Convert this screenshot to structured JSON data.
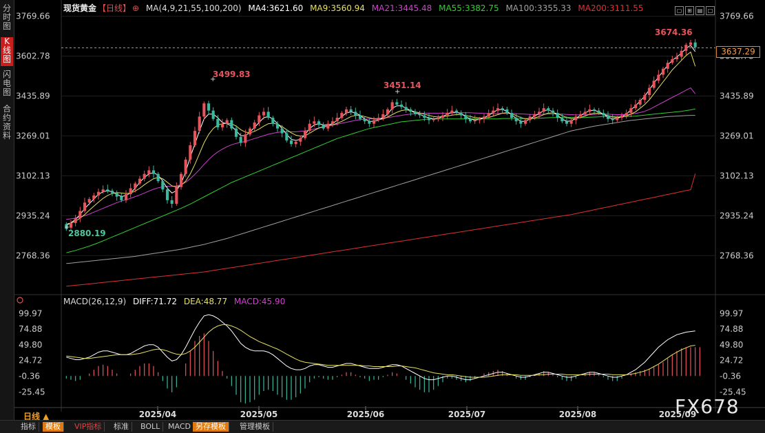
{
  "sidebar": {
    "tabs": [
      {
        "label": "分时图",
        "active": false
      },
      {
        "label": "K线图",
        "active": true
      },
      {
        "label": "闪电图",
        "active": false
      },
      {
        "label": "合约资料",
        "active": false
      }
    ]
  },
  "header": {
    "title": "现货黄金",
    "period_tag": "【日线】",
    "ma_params": "MA(4,9,21,55,100,200)",
    "ma4": "MA4:3621.60",
    "ma9": "MA9:3560.94",
    "ma21": "MA21:3445.48",
    "ma55": "MA55:3382.75",
    "ma100": "MA100:3355.33",
    "ma200": "MA200:3111.55"
  },
  "macd_header": {
    "params": "MACD(26,12,9)",
    "diff": "DIFF:71.72",
    "dea": "DEA:48.77",
    "macd": "MACD:45.90"
  },
  "current_price": "3637.29",
  "bottom_bar": {
    "period": "日线 ▲",
    "tabs": [
      "指标",
      "模板",
      "VIP指标",
      "标准",
      "BOLL",
      "MACD",
      "另存模板",
      "管理模板"
    ]
  },
  "watermark": "FX678",
  "colors": {
    "up": "#e8545c",
    "down": "#3ab8a0",
    "ma4": "#ffffff",
    "ma9": "#e8e060",
    "ma21": "#d040d0",
    "ma55": "#30d030",
    "ma100": "#a0a0a0",
    "ma200": "#e03030",
    "diff": "#ffffff",
    "dea": "#e8e060"
  },
  "chart_data": {
    "type": "candlestick",
    "price_axis": {
      "ticks": [
        "3769.66",
        "3602.78",
        "3435.89",
        "3269.01",
        "3102.13",
        "2935.24",
        "2768.36"
      ],
      "range": [
        2680,
        3800
      ]
    },
    "macd_axis": {
      "ticks": [
        "99.97",
        "74.88",
        "49.80",
        "24.72",
        "-0.36",
        "-25.45"
      ],
      "range": [
        -35,
        110
      ]
    },
    "x_labels": [
      "2025/04",
      "2025/05",
      "2025/06",
      "2025/07",
      "2025/08",
      "2025/09"
    ],
    "annotations": {
      "high_1": "3499.83",
      "low_1": "2880.19",
      "high_2": "3451.14",
      "high_3": "3674.36"
    },
    "closes": [
      2880,
      2905,
      2925,
      2955,
      2990,
      3005,
      3020,
      3035,
      3045,
      3040,
      3030,
      3015,
      3000,
      3025,
      3050,
      3070,
      3090,
      3110,
      3125,
      3110,
      3080,
      3045,
      3000,
      2985,
      3055,
      3110,
      3170,
      3230,
      3290,
      3350,
      3405,
      3375,
      3340,
      3305,
      3320,
      3335,
      3300,
      3265,
      3240,
      3275,
      3300,
      3325,
      3355,
      3370,
      3345,
      3320,
      3300,
      3280,
      3250,
      3235,
      3245,
      3260,
      3290,
      3320,
      3330,
      3315,
      3300,
      3320,
      3330,
      3345,
      3365,
      3380,
      3370,
      3355,
      3340,
      3330,
      3320,
      3335,
      3345,
      3360,
      3380,
      3410,
      3400,
      3390,
      3380,
      3370,
      3360,
      3355,
      3345,
      3335,
      3340,
      3345,
      3355,
      3365,
      3375,
      3365,
      3355,
      3340,
      3330,
      3335,
      3340,
      3350,
      3365,
      3375,
      3385,
      3380,
      3365,
      3345,
      3330,
      3320,
      3335,
      3350,
      3360,
      3370,
      3385,
      3375,
      3365,
      3345,
      3330,
      3320,
      3335,
      3350,
      3360,
      3370,
      3380,
      3375,
      3365,
      3355,
      3340,
      3335,
      3345,
      3355,
      3365,
      3385,
      3400,
      3420,
      3440,
      3470,
      3500,
      3525,
      3550,
      3575,
      3590,
      3600,
      3625,
      3650,
      3660,
      3640
    ],
    "opens": [
      2900,
      2885,
      2905,
      2925,
      2955,
      2990,
      3005,
      3020,
      3035,
      3045,
      3040,
      3030,
      3015,
      3000,
      3025,
      3050,
      3070,
      3090,
      3110,
      3125,
      3110,
      3080,
      3045,
      3000,
      2985,
      3055,
      3110,
      3170,
      3230,
      3290,
      3350,
      3405,
      3375,
      3340,
      3305,
      3320,
      3335,
      3300,
      3265,
      3240,
      3275,
      3300,
      3325,
      3355,
      3370,
      3345,
      3320,
      3300,
      3280,
      3250,
      3235,
      3245,
      3260,
      3290,
      3320,
      3330,
      3315,
      3300,
      3320,
      3330,
      3345,
      3365,
      3380,
      3370,
      3355,
      3340,
      3330,
      3320,
      3335,
      3345,
      3360,
      3380,
      3410,
      3400,
      3390,
      3380,
      3370,
      3360,
      3355,
      3345,
      3335,
      3340,
      3345,
      3355,
      3365,
      3375,
      3365,
      3355,
      3340,
      3330,
      3335,
      3340,
      3350,
      3365,
      3375,
      3385,
      3380,
      3365,
      3345,
      3330,
      3320,
      3335,
      3350,
      3360,
      3370,
      3385,
      3375,
      3365,
      3345,
      3330,
      3320,
      3335,
      3350,
      3360,
      3370,
      3380,
      3375,
      3365,
      3355,
      3340,
      3335,
      3345,
      3355,
      3365,
      3385,
      3400,
      3420,
      3440,
      3470,
      3500,
      3525,
      3550,
      3575,
      3590,
      3600,
      3625,
      3650,
      3660
    ],
    "ma4": [
      2895,
      2905,
      2920,
      2940,
      2965,
      2985,
      3005,
      3025,
      3035,
      3040,
      3035,
      3025,
      3015,
      3020,
      3030,
      3050,
      3075,
      3095,
      3110,
      3115,
      3105,
      3080,
      3050,
      3030,
      3040,
      3070,
      3120,
      3180,
      3235,
      3290,
      3340,
      3360,
      3360,
      3345,
      3325,
      3320,
      3310,
      3290,
      3270,
      3270,
      3285,
      3305,
      3325,
      3345,
      3350,
      3340,
      3320,
      3300,
      3275,
      3255,
      3250,
      3255,
      3275,
      3300,
      3315,
      3320,
      3315,
      3315,
      3320,
      3335,
      3350,
      3365,
      3370,
      3365,
      3355,
      3340,
      3330,
      3330,
      3335,
      3345,
      3360,
      3385,
      3395,
      3395,
      3385,
      3375,
      3365,
      3360,
      3350,
      3345,
      3340,
      3342,
      3350,
      3360,
      3368,
      3368,
      3362,
      3350,
      3340,
      3336,
      3338,
      3345,
      3355,
      3368,
      3378,
      3380,
      3372,
      3358,
      3342,
      3330,
      3330,
      3340,
      3352,
      3362,
      3375,
      3378,
      3370,
      3355,
      3340,
      3330,
      3332,
      3342,
      3355,
      3365,
      3375,
      3376,
      3370,
      3360,
      3348,
      3340,
      3342,
      3350,
      3360,
      3378,
      3395,
      3415,
      3435,
      3462,
      3490,
      3515,
      3540,
      3565,
      3585,
      3600,
      3615,
      3635,
      3648,
      3622
    ],
    "ma9": [
      2900,
      2905,
      2912,
      2925,
      2940,
      2958,
      2975,
      2992,
      3008,
      3020,
      3028,
      3032,
      3030,
      3028,
      3030,
      3038,
      3050,
      3065,
      3078,
      3090,
      3095,
      3090,
      3075,
      3060,
      3055,
      3062,
      3080,
      3110,
      3150,
      3195,
      3240,
      3275,
      3300,
      3315,
      3320,
      3322,
      3320,
      3310,
      3295,
      3285,
      3282,
      3288,
      3298,
      3310,
      3320,
      3322,
      3318,
      3308,
      3295,
      3282,
      3272,
      3268,
      3270,
      3280,
      3292,
      3302,
      3308,
      3312,
      3315,
      3322,
      3330,
      3340,
      3350,
      3355,
      3355,
      3350,
      3345,
      3340,
      3338,
      3340,
      3348,
      3358,
      3368,
      3375,
      3378,
      3375,
      3370,
      3365,
      3360,
      3355,
      3350,
      3348,
      3350,
      3352,
      3356,
      3358,
      3358,
      3355,
      3350,
      3346,
      3344,
      3344,
      3346,
      3352,
      3358,
      3364,
      3366,
      3362,
      3354,
      3346,
      3340,
      3340,
      3344,
      3350,
      3358,
      3364,
      3366,
      3362,
      3354,
      3346,
      3342,
      3342,
      3346,
      3352,
      3360,
      3364,
      3364,
      3360,
      3354,
      3348,
      3346,
      3348,
      3352,
      3360,
      3370,
      3385,
      3400,
      3420,
      3445,
      3470,
      3495,
      3520,
      3545,
      3565,
      3585,
      3605,
      3620,
      3560
    ],
    "ma21": [
      2920,
      2922,
      2925,
      2930,
      2935,
      2942,
      2950,
      2958,
      2966,
      2974,
      2982,
      2990,
      2996,
      3002,
      3008,
      3015,
      3022,
      3030,
      3038,
      3046,
      3052,
      3056,
      3058,
      3058,
      3060,
      3065,
      3075,
      3090,
      3108,
      3128,
      3150,
      3170,
      3188,
      3202,
      3214,
      3224,
      3232,
      3238,
      3242,
      3246,
      3252,
      3258,
      3264,
      3270,
      3276,
      3280,
      3284,
      3286,
      3286,
      3286,
      3286,
      3288,
      3290,
      3294,
      3298,
      3302,
      3306,
      3310,
      3314,
      3318,
      3322,
      3326,
      3330,
      3334,
      3337,
      3339,
      3340,
      3341,
      3342,
      3344,
      3346,
      3349,
      3352,
      3355,
      3358,
      3360,
      3362,
      3363,
      3364,
      3364,
      3364,
      3364,
      3364,
      3364,
      3365,
      3366,
      3366,
      3366,
      3366,
      3365,
      3364,
      3363,
      3362,
      3362,
      3362,
      3363,
      3363,
      3363,
      3362,
      3361,
      3360,
      3359,
      3359,
      3359,
      3360,
      3361,
      3361,
      3361,
      3360,
      3359,
      3358,
      3357,
      3357,
      3357,
      3358,
      3359,
      3360,
      3360,
      3360,
      3359,
      3358,
      3358,
      3358,
      3360,
      3363,
      3367,
      3372,
      3380,
      3390,
      3400,
      3410,
      3420,
      3430,
      3440,
      3450,
      3460,
      3470,
      3445
    ],
    "ma55": [
      2780,
      2785,
      2790,
      2796,
      2802,
      2808,
      2815,
      2822,
      2830,
      2838,
      2846,
      2854,
      2862,
      2870,
      2878,
      2886,
      2894,
      2902,
      2910,
      2918,
      2926,
      2934,
      2942,
      2950,
      2958,
      2966,
      2975,
      2984,
      2994,
      3004,
      3014,
      3024,
      3034,
      3044,
      3054,
      3064,
      3074,
      3082,
      3090,
      3098,
      3106,
      3114,
      3122,
      3130,
      3138,
      3146,
      3154,
      3162,
      3170,
      3178,
      3186,
      3194,
      3202,
      3210,
      3218,
      3226,
      3234,
      3242,
      3250,
      3258,
      3264,
      3270,
      3276,
      3282,
      3288,
      3294,
      3300,
      3304,
      3308,
      3312,
      3316,
      3320,
      3324,
      3328,
      3330,
      3332,
      3334,
      3336,
      3338,
      3340,
      3340,
      3340,
      3340,
      3340,
      3340,
      3340,
      3340,
      3340,
      3340,
      3340,
      3340,
      3340,
      3340,
      3340,
      3340,
      3342,
      3342,
      3342,
      3342,
      3342,
      3342,
      3342,
      3342,
      3343,
      3344,
      3345,
      3346,
      3346,
      3346,
      3346,
      3346,
      3346,
      3346,
      3346,
      3347,
      3348,
      3349,
      3350,
      3350,
      3350,
      3350,
      3350,
      3350,
      3351,
      3352,
      3354,
      3356,
      3358,
      3360,
      3362,
      3364,
      3366,
      3368,
      3370,
      3372,
      3375,
      3378,
      3382
    ],
    "ma100": [
      2735,
      2737,
      2739,
      2741,
      2743,
      2745,
      2747,
      2749,
      2751,
      2753,
      2755,
      2757,
      2759,
      2761,
      2763,
      2765,
      2768,
      2771,
      2774,
      2777,
      2780,
      2783,
      2786,
      2789,
      2792,
      2795,
      2799,
      2803,
      2807,
      2811,
      2815,
      2820,
      2825,
      2830,
      2835,
      2840,
      2846,
      2852,
      2858,
      2864,
      2870,
      2876,
      2882,
      2888,
      2894,
      2900,
      2906,
      2912,
      2918,
      2924,
      2930,
      2936,
      2942,
      2948,
      2954,
      2960,
      2966,
      2972,
      2978,
      2984,
      2990,
      2996,
      3002,
      3008,
      3014,
      3020,
      3026,
      3032,
      3038,
      3044,
      3050,
      3056,
      3062,
      3068,
      3074,
      3080,
      3086,
      3092,
      3098,
      3104,
      3110,
      3116,
      3122,
      3128,
      3134,
      3140,
      3146,
      3152,
      3158,
      3164,
      3170,
      3176,
      3182,
      3188,
      3194,
      3200,
      3206,
      3212,
      3218,
      3224,
      3230,
      3236,
      3242,
      3248,
      3254,
      3260,
      3266,
      3272,
      3278,
      3284,
      3290,
      3294,
      3298,
      3302,
      3306,
      3310,
      3313,
      3316,
      3319,
      3322,
      3325,
      3328,
      3331,
      3334,
      3336,
      3338,
      3340,
      3342,
      3344,
      3346,
      3348,
      3350,
      3351,
      3352,
      3353,
      3354,
      3355,
      3355
    ],
    "ma200": [
      2640,
      2642,
      2644,
      2646,
      2648,
      2650,
      2652,
      2654,
      2656,
      2658,
      2660,
      2662,
      2664,
      2666,
      2668,
      2670,
      2672,
      2674,
      2676,
      2678,
      2680,
      2682,
      2684,
      2686,
      2688,
      2690,
      2692,
      2694,
      2696,
      2698,
      2700,
      2703,
      2706,
      2709,
      2712,
      2715,
      2718,
      2721,
      2724,
      2727,
      2730,
      2733,
      2736,
      2739,
      2742,
      2745,
      2748,
      2751,
      2754,
      2757,
      2760,
      2763,
      2766,
      2769,
      2772,
      2775,
      2778,
      2781,
      2784,
      2787,
      2790,
      2793,
      2796,
      2799,
      2802,
      2805,
      2808,
      2811,
      2814,
      2817,
      2820,
      2823,
      2826,
      2829,
      2832,
      2835,
      2838,
      2841,
      2844,
      2847,
      2850,
      2853,
      2856,
      2859,
      2862,
      2865,
      2868,
      2871,
      2874,
      2877,
      2880,
      2883,
      2886,
      2889,
      2892,
      2895,
      2898,
      2901,
      2904,
      2907,
      2910,
      2913,
      2916,
      2919,
      2922,
      2925,
      2928,
      2931,
      2934,
      2937,
      2940,
      2944,
      2948,
      2952,
      2956,
      2960,
      2964,
      2968,
      2972,
      2976,
      2980,
      2984,
      2988,
      2992,
      2996,
      3000,
      3004,
      3008,
      3012,
      3016,
      3020,
      3024,
      3028,
      3032,
      3036,
      3040,
      3044,
      3111
    ],
    "diff": [
      30,
      28,
      26,
      26,
      28,
      30,
      34,
      38,
      40,
      40,
      38,
      36,
      34,
      34,
      36,
      40,
      44,
      48,
      50,
      50,
      46,
      38,
      30,
      24,
      26,
      34,
      46,
      60,
      74,
      86,
      96,
      98,
      96,
      92,
      86,
      80,
      72,
      62,
      52,
      46,
      42,
      40,
      40,
      40,
      38,
      34,
      28,
      22,
      16,
      12,
      10,
      10,
      12,
      16,
      18,
      18,
      16,
      14,
      14,
      16,
      18,
      20,
      20,
      18,
      16,
      14,
      12,
      12,
      12,
      14,
      16,
      18,
      18,
      16,
      12,
      8,
      4,
      0,
      -4,
      -6,
      -6,
      -4,
      -2,
      0,
      0,
      -2,
      -4,
      -6,
      -6,
      -4,
      -2,
      0,
      2,
      4,
      6,
      6,
      4,
      2,
      0,
      -2,
      -2,
      0,
      2,
      4,
      6,
      6,
      4,
      2,
      0,
      -2,
      -2,
      0,
      2,
      4,
      6,
      6,
      4,
      2,
      0,
      -2,
      -2,
      0,
      2,
      6,
      10,
      16,
      22,
      30,
      38,
      46,
      52,
      58,
      62,
      66,
      68,
      70,
      71,
      72
    ],
    "dea": [
      32,
      31,
      30,
      29,
      28,
      28,
      29,
      30,
      31,
      32,
      33,
      34,
      34,
      34,
      34,
      35,
      36,
      38,
      40,
      42,
      43,
      42,
      40,
      37,
      35,
      34,
      36,
      40,
      46,
      54,
      62,
      70,
      76,
      80,
      82,
      82,
      80,
      77,
      73,
      68,
      63,
      59,
      55,
      52,
      49,
      46,
      43,
      39,
      35,
      31,
      27,
      24,
      22,
      21,
      20,
      19,
      18,
      17,
      17,
      17,
      17,
      17,
      17,
      17,
      17,
      16,
      16,
      15,
      15,
      15,
      15,
      15,
      16,
      16,
      15,
      14,
      13,
      11,
      9,
      7,
      5,
      4,
      3,
      2,
      2,
      1,
      0,
      -1,
      -2,
      -2,
      -2,
      -2,
      -1,
      0,
      1,
      2,
      2,
      2,
      2,
      1,
      1,
      1,
      1,
      2,
      2,
      3,
      3,
      3,
      3,
      2,
      2,
      2,
      2,
      2,
      3,
      3,
      3,
      3,
      3,
      2,
      2,
      2,
      2,
      3,
      4,
      6,
      8,
      11,
      15,
      19,
      24,
      29,
      34,
      38,
      42,
      45,
      48,
      49
    ],
    "macd_hist": [
      -4,
      -6,
      -8,
      -6,
      0,
      4,
      10,
      16,
      18,
      16,
      10,
      4,
      0,
      0,
      4,
      10,
      16,
      20,
      20,
      16,
      6,
      -8,
      -20,
      -26,
      -18,
      0,
      20,
      40,
      56,
      64,
      68,
      56,
      40,
      24,
      8,
      -4,
      -16,
      -30,
      -42,
      -44,
      -42,
      -38,
      -30,
      -24,
      -22,
      -24,
      -30,
      -34,
      -38,
      -38,
      -34,
      -28,
      -20,
      -10,
      -4,
      -2,
      -4,
      -6,
      -6,
      -2,
      2,
      6,
      6,
      2,
      -2,
      -4,
      -8,
      -6,
      -6,
      -2,
      2,
      6,
      4,
      0,
      -6,
      -12,
      -18,
      -22,
      -26,
      -26,
      -22,
      -16,
      -10,
      -4,
      -4,
      -6,
      -8,
      -10,
      -8,
      -4,
      0,
      4,
      6,
      8,
      10,
      8,
      4,
      0,
      -4,
      -6,
      -6,
      -2,
      2,
      4,
      8,
      6,
      2,
      -2,
      -6,
      -8,
      -8,
      -4,
      0,
      4,
      6,
      6,
      2,
      -2,
      -6,
      -8,
      -8,
      -4,
      0,
      4,
      6,
      8,
      10,
      12,
      14,
      18,
      22,
      28,
      34,
      40,
      44,
      46,
      46,
      46,
      46
    ]
  }
}
